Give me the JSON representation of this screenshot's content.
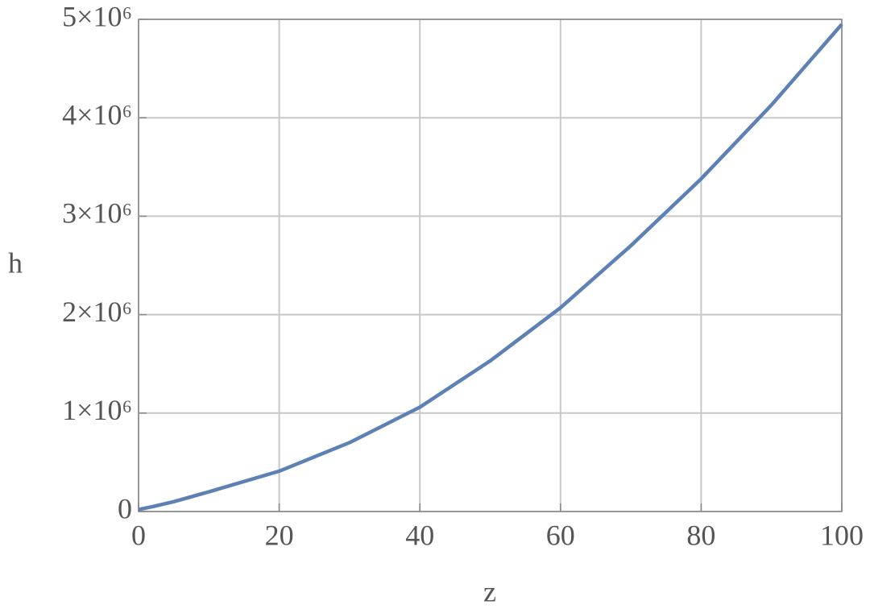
{
  "chart_data": {
    "type": "line",
    "xlabel": "z",
    "ylabel": "h",
    "x": [
      0,
      2,
      5,
      10,
      20,
      30,
      40,
      50,
      60,
      70,
      80,
      90,
      100
    ],
    "values": [
      20000,
      50000,
      100000,
      200000,
      410000,
      700000,
      1060000,
      1530000,
      2070000,
      2700000,
      3380000,
      4130000,
      4950000
    ],
    "color": "#5e81b5",
    "xlim": [
      0,
      100
    ],
    "xticks": [
      0,
      20,
      40,
      60,
      80,
      100
    ],
    "ylim": [
      0,
      5000000
    ],
    "yticks": [
      0,
      {
        "value": 1000000,
        "label": "1×10⁶"
      },
      {
        "value": 2000000,
        "label": "2×10⁶"
      },
      {
        "value": 3000000,
        "label": "3×10⁶"
      },
      {
        "value": 4000000,
        "label": "4×10⁶"
      },
      {
        "value": 5000000,
        "label": "5×10⁶"
      }
    ],
    "grid": true
  }
}
